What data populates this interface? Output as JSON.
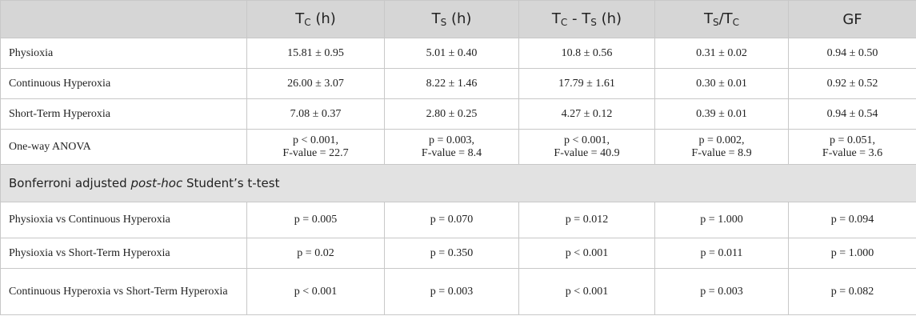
{
  "header": {
    "columns": [
      [
        {
          "t": "T"
        },
        {
          "t": "C",
          "sub": true
        },
        {
          "t": " (h)"
        }
      ],
      [
        {
          "t": "T"
        },
        {
          "t": "S",
          "sub": true
        },
        {
          "t": " (h)"
        }
      ],
      [
        {
          "t": "T"
        },
        {
          "t": "C",
          "sub": true
        },
        {
          "t": " - T"
        },
        {
          "t": "S",
          "sub": true
        },
        {
          "t": " (h)"
        }
      ],
      [
        {
          "t": "T"
        },
        {
          "t": "S",
          "sub": true
        },
        {
          "t": "/T"
        },
        {
          "t": "C",
          "sub": true
        }
      ],
      [
        {
          "t": "GF"
        }
      ]
    ]
  },
  "table": {
    "rows": [
      {
        "label": "Physioxia",
        "cells": [
          "15.81 ± 0.95",
          "5.01 ± 0.40",
          "10.8 ± 0.56",
          "0.31 ± 0.02",
          "0.94 ± 0.50"
        ]
      },
      {
        "label": "Continuous Hyperoxia",
        "cells": [
          "26.00 ± 3.07",
          "8.22 ± 1.46",
          "17.79 ± 1.61",
          "0.30 ± 0.01",
          "0.92 ± 0.52"
        ]
      },
      {
        "label": "Short-Term Hyperoxia",
        "cells": [
          "7.08 ± 0.37",
          "2.80 ± 0.25",
          "4.27 ± 0.12",
          "0.39 ± 0.01",
          "0.94 ± 0.54"
        ]
      },
      {
        "label": "One-way ANOVA",
        "cells": [
          [
            "p < 0.001,",
            "F-value = 22.7"
          ],
          [
            "p = 0.003,",
            "F-value = 8.4"
          ],
          [
            "p < 0.001,",
            "F-value = 40.9"
          ],
          [
            "p = 0.002,",
            "F-value = 8.9"
          ],
          [
            "p = 0.051,",
            "F-value = 3.6"
          ]
        ]
      }
    ]
  },
  "section": {
    "title": [
      {
        "t": "Bonferroni adjusted "
      },
      {
        "t": "post-hoc",
        "italic": true
      },
      {
        "t": " Student’s t-test"
      }
    ]
  },
  "table2": {
    "rows": [
      {
        "label": "Physioxia vs Continuous Hyperoxia",
        "cells": [
          "p = 0.005",
          "p = 0.070",
          "p = 0.012",
          "p = 1.000",
          "p = 0.094"
        ]
      },
      {
        "label": "Physioxia vs Short-Term Hyperoxia",
        "cells": [
          "p = 0.02",
          "p = 0.350",
          "p < 0.001",
          "p = 0.011",
          "p = 1.000"
        ]
      },
      {
        "label": "Continuous Hyperoxia vs Short-Term Hyperoxia",
        "cells": [
          "p < 0.001",
          "p = 0.003",
          "p < 0.001",
          "p = 0.003",
          "p = 0.082"
        ]
      }
    ]
  }
}
